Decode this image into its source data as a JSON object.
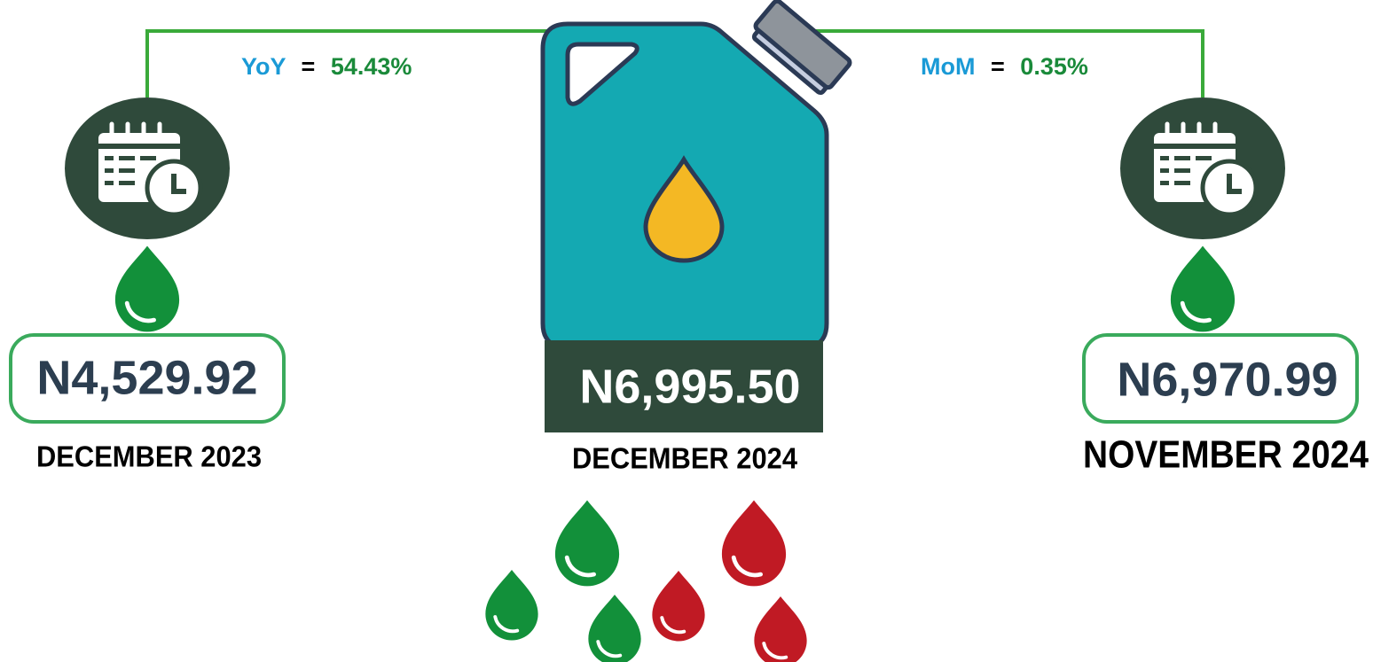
{
  "comparisons": [
    {
      "label": "YoY",
      "sign": "=",
      "value": "54.43%"
    },
    {
      "label": "MoM",
      "sign": "=",
      "value": "0.35%"
    }
  ],
  "prices": [
    {
      "amount": "N4,529.92",
      "period": "DECEMBER 2023"
    },
    {
      "amount": "N6,995.50",
      "period": "DECEMBER 2024"
    },
    {
      "amount": "N6,970.99",
      "period": "NOVEMBER 2024"
    }
  ]
}
